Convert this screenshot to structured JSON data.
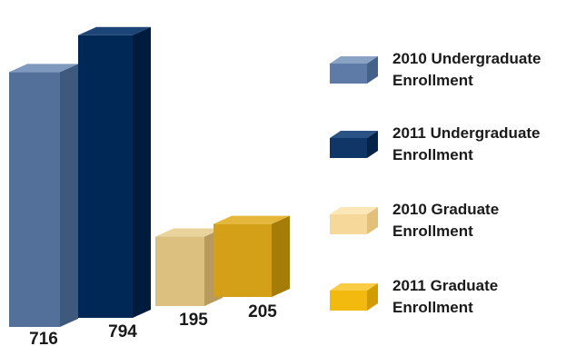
{
  "chart_data": {
    "type": "bar",
    "title": "",
    "xlabel": "",
    "ylabel": "",
    "ylim": [
      0,
      900
    ],
    "grid": false,
    "legend_position": "right",
    "bars": [
      {
        "name": "2010 Undergraduate Enrollment",
        "value": 716,
        "label": "716",
        "color": "#53709a",
        "top_color": "#7f98bd",
        "side_color": "#3e587e"
      },
      {
        "name": "2011 Undergraduate Enrollment",
        "value": 794,
        "label": "794",
        "color": "#002856",
        "top_color": "#1d4476",
        "side_color": "#001b3d"
      },
      {
        "name": "2010 Graduate Enrollment",
        "value": 195,
        "label": "195",
        "color": "#dcc080",
        "top_color": "#e9d39c",
        "side_color": "#b89b5c"
      },
      {
        "name": "2011 Graduate Enrollment",
        "value": 205,
        "label": "205",
        "color": "#d4a017",
        "top_color": "#e4b63a",
        "side_color": "#a67c08"
      }
    ],
    "legend": [
      {
        "line1": "2010 Undergraduate",
        "line2": "Enrollment",
        "color": "#5d7ba6",
        "top_color": "#8aa2c4",
        "side_color": "#44618a"
      },
      {
        "line1": "2011 Undergraduate",
        "line2": "Enrollment",
        "color": "#0f3666",
        "top_color": "#2a5285",
        "side_color": "#032349"
      },
      {
        "line1": "2010 Graduate",
        "line2": "Enrollment",
        "color": "#f6d99a",
        "top_color": "#fbe6b8",
        "side_color": "#e3c07a"
      },
      {
        "line1": "2011 Graduate",
        "line2": "Enrollment",
        "color": "#f2b90f",
        "top_color": "#f8cc45",
        "side_color": "#d29b00"
      }
    ]
  }
}
